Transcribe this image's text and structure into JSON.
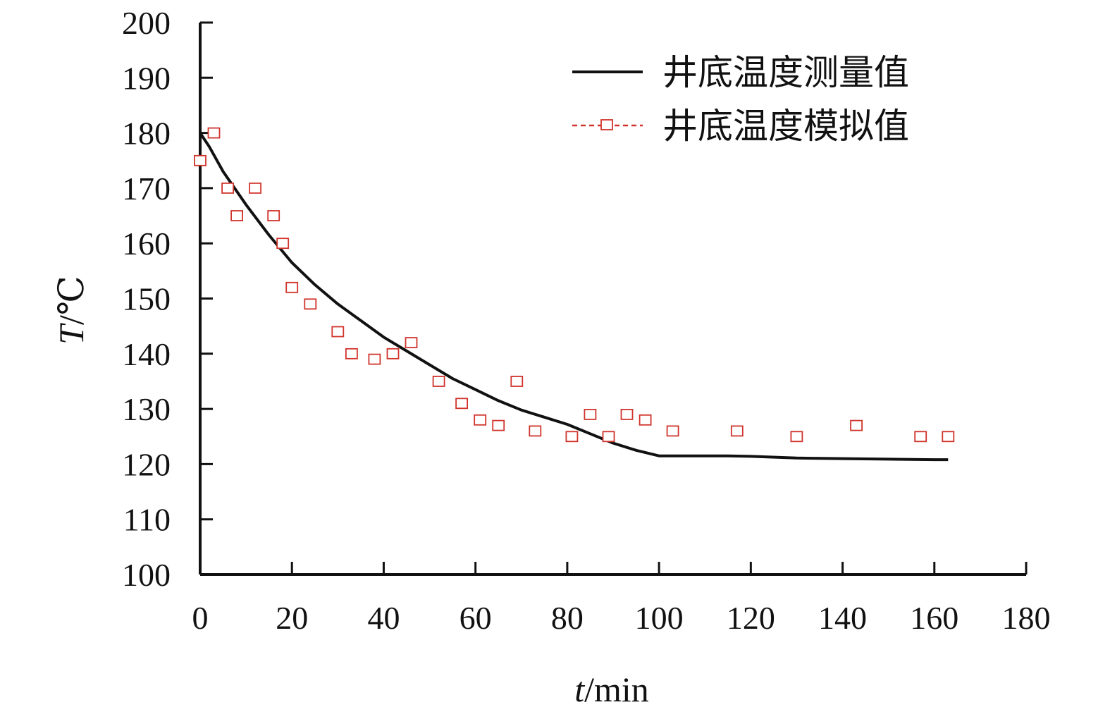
{
  "chart_data": {
    "type": "line",
    "title": "",
    "xlabel": {
      "italic": "t",
      "rest": "/min"
    },
    "ylabel": {
      "italic": "T",
      "rest": "/℃"
    },
    "xlim": [
      0,
      180
    ],
    "ylim": [
      100,
      200
    ],
    "xticks": [
      0,
      20,
      40,
      60,
      80,
      100,
      120,
      140,
      160,
      180
    ],
    "yticks": [
      100,
      110,
      120,
      130,
      140,
      150,
      160,
      170,
      180,
      190,
      200
    ],
    "grid": false,
    "legend_position": "top-right",
    "series": [
      {
        "name": "井底温度测量值",
        "style": "solid-line",
        "color": "#111111",
        "x": [
          0,
          2,
          5,
          10,
          15,
          20,
          25,
          30,
          35,
          40,
          45,
          50,
          55,
          60,
          65,
          70,
          75,
          80,
          85,
          90,
          95,
          100,
          105,
          110,
          115,
          120,
          130,
          140,
          150,
          160,
          163
        ],
        "y": [
          180,
          177.5,
          173,
          167,
          161.5,
          156.5,
          152.5,
          149,
          146,
          143,
          140.5,
          138,
          135.5,
          133.5,
          131.5,
          129.8,
          128.5,
          127.2,
          125.5,
          123.8,
          122.5,
          121.5,
          121.5,
          121.5,
          121.5,
          121.4,
          121.1,
          121,
          120.9,
          120.8,
          120.8
        ]
      },
      {
        "name": "井底温度模拟值",
        "style": "square-markers-dashed",
        "color": "#d0342c",
        "x": [
          0,
          3,
          6,
          8,
          12,
          16,
          18,
          20,
          24,
          30,
          33,
          38,
          42,
          46,
          52,
          57,
          61,
          65,
          69,
          73,
          81,
          85,
          89,
          93,
          97,
          103,
          117,
          130,
          143,
          157,
          163
        ],
        "y": [
          175,
          180,
          170,
          165,
          170,
          165,
          160,
          152,
          149,
          144,
          140,
          139,
          140,
          142,
          135,
          131,
          128,
          127,
          135,
          126,
          125,
          129,
          125,
          129,
          128,
          126,
          126,
          125,
          127,
          125,
          125
        ]
      }
    ]
  }
}
